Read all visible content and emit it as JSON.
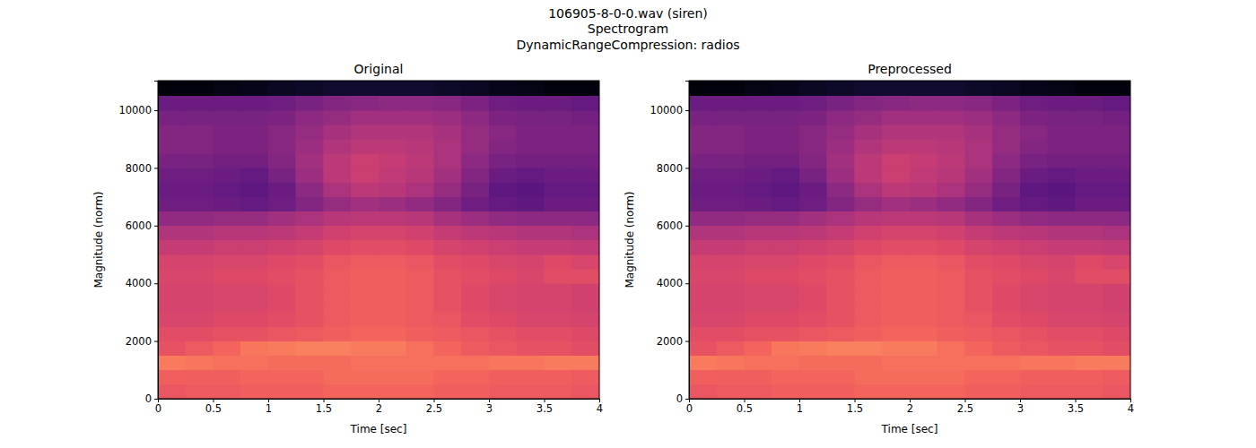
{
  "title": [
    "106905-8-0-0.wav (siren)",
    "Spectrogram",
    "DynamicRangeCompression: radios"
  ],
  "chart_data": [
    {
      "type": "heatmap",
      "title": "Original",
      "x_label": "Time [sec]",
      "y_label": "Magnitude (norm)",
      "xlim": [
        0,
        4.0
      ],
      "ylim": [
        0,
        11025
      ],
      "xticks": [
        0,
        0.5,
        1,
        1.5,
        2,
        2.5,
        3,
        3.5,
        4
      ],
      "yticks": [
        0,
        2000,
        4000,
        6000,
        8000,
        10000
      ],
      "color": "magma",
      "color_range": [
        -80,
        0
      ],
      "x_bins": [
        0,
        0.25,
        0.5,
        0.75,
        1,
        1.25,
        1.5,
        1.75,
        2,
        2.25,
        2.5,
        2.75,
        3,
        3.25,
        3.5,
        3.75,
        4.0
      ],
      "y_bins": [
        0,
        500,
        1000,
        1500,
        2000,
        2500,
        3000,
        3500,
        4000,
        4500,
        5000,
        5500,
        6000,
        6500,
        7000,
        7500,
        8000,
        8500,
        9000,
        9500,
        10000,
        10500,
        11025
      ],
      "cells": [
        [
          -29,
          -28,
          -28,
          -27,
          -27,
          -27,
          -26,
          -26,
          -26,
          -26,
          -27,
          -27,
          -28,
          -28,
          -28,
          -29
        ],
        [
          -27,
          -27,
          -27,
          -26,
          -26,
          -26,
          -25,
          -25,
          -25,
          -25,
          -26,
          -26,
          -27,
          -27,
          -27,
          -28
        ],
        [
          -22,
          -23,
          -24,
          -24,
          -25,
          -25,
          -25,
          -24,
          -24,
          -24,
          -24,
          -24,
          -23,
          -23,
          -22,
          -22
        ],
        [
          -30,
          -28,
          -26,
          -23,
          -22,
          -21,
          -21,
          -22,
          -22,
          -24,
          -26,
          -28,
          -29,
          -30,
          -30,
          -31
        ],
        [
          -31,
          -31,
          -30,
          -30,
          -29,
          -28,
          -27,
          -26,
          -26,
          -27,
          -28,
          -29,
          -30,
          -31,
          -31,
          -32
        ],
        [
          -33,
          -33,
          -32,
          -32,
          -31,
          -30,
          -28,
          -27,
          -27,
          -28,
          -29,
          -31,
          -32,
          -33,
          -33,
          -34
        ],
        [
          -34,
          -34,
          -33,
          -33,
          -32,
          -30,
          -28,
          -27,
          -27,
          -28,
          -30,
          -32,
          -33,
          -34,
          -34,
          -35
        ],
        [
          -34,
          -34,
          -33,
          -33,
          -32,
          -30,
          -28,
          -27,
          -27,
          -28,
          -30,
          -32,
          -33,
          -34,
          -34,
          -35
        ],
        [
          -33,
          -33,
          -32,
          -32,
          -31,
          -30,
          -28,
          -27,
          -27,
          -28,
          -30,
          -31,
          -32,
          -33,
          -31,
          -31
        ],
        [
          -34,
          -34,
          -33,
          -33,
          -32,
          -31,
          -29,
          -28,
          -28,
          -29,
          -31,
          -32,
          -33,
          -34,
          -32,
          -33
        ],
        [
          -37,
          -37,
          -36,
          -36,
          -35,
          -34,
          -32,
          -31,
          -31,
          -32,
          -34,
          -35,
          -36,
          -37,
          -37,
          -38
        ],
        [
          -41,
          -41,
          -40,
          -40,
          -39,
          -37,
          -35,
          -34,
          -34,
          -35,
          -37,
          -39,
          -40,
          -41,
          -41,
          -42
        ],
        [
          -47,
          -47,
          -46,
          -46,
          -44,
          -42,
          -40,
          -39,
          -39,
          -40,
          -43,
          -45,
          -47,
          -48,
          -48,
          -48
        ],
        [
          -54,
          -54,
          -55,
          -56,
          -54,
          -50,
          -46,
          -44,
          -45,
          -47,
          -50,
          -54,
          -56,
          -57,
          -55,
          -55
        ],
        [
          -55,
          -55,
          -56,
          -57,
          -55,
          -48,
          -42,
          -39,
          -40,
          -42,
          -46,
          -52,
          -57,
          -58,
          -56,
          -56
        ],
        [
          -54,
          -54,
          -55,
          -56,
          -52,
          -45,
          -39,
          -36,
          -38,
          -40,
          -44,
          -50,
          -55,
          -56,
          -55,
          -55
        ],
        [
          -52,
          -52,
          -53,
          -53,
          -50,
          -44,
          -39,
          -36,
          -37,
          -39,
          -42,
          -48,
          -52,
          -53,
          -53,
          -53
        ],
        [
          -50,
          -50,
          -51,
          -51,
          -49,
          -45,
          -41,
          -39,
          -39,
          -40,
          -42,
          -46,
          -50,
          -51,
          -51,
          -51
        ],
        [
          -50,
          -50,
          -51,
          -51,
          -49,
          -46,
          -43,
          -41,
          -41,
          -41,
          -43,
          -46,
          -49,
          -51,
          -51,
          -51
        ],
        [
          -52,
          -52,
          -52,
          -52,
          -51,
          -48,
          -46,
          -44,
          -44,
          -44,
          -45,
          -48,
          -51,
          -52,
          -52,
          -53
        ],
        [
          -55,
          -55,
          -55,
          -55,
          -54,
          -52,
          -50,
          -49,
          -48,
          -48,
          -49,
          -51,
          -54,
          -55,
          -55,
          -56
        ],
        [
          -78,
          -78,
          -77,
          -76,
          -75,
          -74,
          -73,
          -73,
          -73,
          -73,
          -74,
          -75,
          -76,
          -77,
          -78,
          -78
        ]
      ]
    },
    {
      "type": "heatmap",
      "title": "Preprocessed",
      "x_label": "Time [sec]",
      "y_label": "Magnitude (norm)",
      "xlim": [
        0,
        4.0
      ],
      "ylim": [
        0,
        11025
      ],
      "xticks": [
        0,
        0.5,
        1,
        1.5,
        2,
        2.5,
        3,
        3.5,
        4
      ],
      "yticks": [
        0,
        2000,
        4000,
        6000,
        8000,
        10000
      ],
      "color": "magma",
      "color_range": [
        -80,
        0
      ],
      "x_bins": [
        0,
        0.25,
        0.5,
        0.75,
        1,
        1.25,
        1.5,
        1.75,
        2,
        2.25,
        2.5,
        2.75,
        3,
        3.25,
        3.5,
        3.75,
        4.0
      ],
      "y_bins": [
        0,
        500,
        1000,
        1500,
        2000,
        2500,
        3000,
        3500,
        4000,
        4500,
        5000,
        5500,
        6000,
        6500,
        7000,
        7500,
        8000,
        8500,
        9000,
        9500,
        10000,
        10500,
        11025
      ],
      "cells": [
        [
          -29,
          -28,
          -28,
          -27,
          -27,
          -27,
          -26,
          -26,
          -26,
          -26,
          -27,
          -27,
          -28,
          -28,
          -28,
          -29
        ],
        [
          -27,
          -27,
          -27,
          -26,
          -26,
          -26,
          -25,
          -25,
          -25,
          -25,
          -26,
          -26,
          -27,
          -27,
          -27,
          -28
        ],
        [
          -22,
          -23,
          -24,
          -24,
          -25,
          -25,
          -25,
          -24,
          -24,
          -24,
          -24,
          -24,
          -23,
          -23,
          -22,
          -22
        ],
        [
          -30,
          -28,
          -26,
          -23,
          -22,
          -21,
          -21,
          -22,
          -22,
          -24,
          -26,
          -28,
          -29,
          -30,
          -30,
          -31
        ],
        [
          -31,
          -31,
          -30,
          -30,
          -29,
          -28,
          -27,
          -26,
          -26,
          -27,
          -28,
          -29,
          -30,
          -31,
          -31,
          -32
        ],
        [
          -33,
          -33,
          -32,
          -32,
          -31,
          -30,
          -28,
          -27,
          -27,
          -28,
          -29,
          -31,
          -32,
          -33,
          -33,
          -34
        ],
        [
          -34,
          -34,
          -33,
          -33,
          -32,
          -30,
          -28,
          -27,
          -27,
          -28,
          -30,
          -32,
          -33,
          -34,
          -34,
          -35
        ],
        [
          -34,
          -34,
          -33,
          -33,
          -32,
          -30,
          -28,
          -27,
          -27,
          -28,
          -30,
          -32,
          -33,
          -34,
          -34,
          -35
        ],
        [
          -33,
          -33,
          -32,
          -32,
          -31,
          -30,
          -28,
          -27,
          -27,
          -28,
          -30,
          -31,
          -32,
          -33,
          -31,
          -31
        ],
        [
          -34,
          -34,
          -33,
          -33,
          -32,
          -31,
          -29,
          -28,
          -28,
          -29,
          -31,
          -32,
          -33,
          -34,
          -32,
          -33
        ],
        [
          -37,
          -37,
          -36,
          -36,
          -35,
          -34,
          -32,
          -31,
          -31,
          -32,
          -34,
          -35,
          -36,
          -37,
          -37,
          -38
        ],
        [
          -41,
          -41,
          -40,
          -40,
          -39,
          -37,
          -35,
          -34,
          -34,
          -35,
          -37,
          -39,
          -40,
          -41,
          -41,
          -42
        ],
        [
          -47,
          -47,
          -46,
          -46,
          -44,
          -42,
          -40,
          -39,
          -39,
          -40,
          -43,
          -45,
          -47,
          -48,
          -48,
          -48
        ],
        [
          -54,
          -54,
          -55,
          -56,
          -54,
          -50,
          -46,
          -44,
          -45,
          -47,
          -50,
          -54,
          -56,
          -57,
          -55,
          -55
        ],
        [
          -55,
          -55,
          -56,
          -57,
          -55,
          -48,
          -42,
          -39,
          -40,
          -42,
          -46,
          -52,
          -57,
          -58,
          -56,
          -56
        ],
        [
          -54,
          -54,
          -55,
          -56,
          -52,
          -45,
          -39,
          -36,
          -38,
          -40,
          -44,
          -50,
          -55,
          -56,
          -55,
          -55
        ],
        [
          -52,
          -52,
          -53,
          -53,
          -50,
          -44,
          -39,
          -36,
          -37,
          -39,
          -42,
          -48,
          -52,
          -53,
          -53,
          -53
        ],
        [
          -50,
          -50,
          -51,
          -51,
          -49,
          -45,
          -41,
          -39,
          -39,
          -40,
          -42,
          -46,
          -50,
          -51,
          -51,
          -51
        ],
        [
          -50,
          -50,
          -51,
          -51,
          -49,
          -46,
          -43,
          -41,
          -41,
          -41,
          -43,
          -46,
          -49,
          -51,
          -51,
          -51
        ],
        [
          -52,
          -52,
          -52,
          -52,
          -51,
          -48,
          -46,
          -44,
          -44,
          -44,
          -45,
          -48,
          -51,
          -52,
          -52,
          -53
        ],
        [
          -55,
          -55,
          -55,
          -55,
          -54,
          -52,
          -50,
          -49,
          -48,
          -48,
          -49,
          -51,
          -54,
          -55,
          -55,
          -56
        ],
        [
          -78,
          -78,
          -77,
          -76,
          -75,
          -74,
          -73,
          -73,
          -73,
          -73,
          -74,
          -75,
          -76,
          -77,
          -78,
          -78
        ]
      ]
    }
  ]
}
